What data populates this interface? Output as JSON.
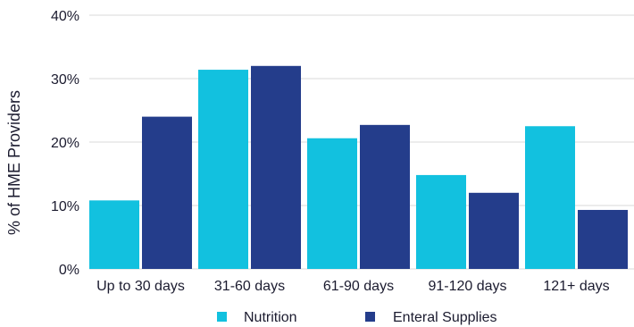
{
  "chart_data": {
    "type": "bar",
    "title": "",
    "xlabel": "",
    "ylabel": "% of HME Providers",
    "ylim": [
      0,
      40
    ],
    "yticks": [
      "0%",
      "10%",
      "20%",
      "30%",
      "40%"
    ],
    "categories": [
      "Up to 30 days",
      "31-60 days",
      "61-90 days",
      "91-120 days",
      "121+ days"
    ],
    "series": [
      {
        "name": "Nutrition",
        "color": "#12c1df",
        "values": [
          10.8,
          31.4,
          20.6,
          14.8,
          22.5
        ]
      },
      {
        "name": "Enteral Supplies",
        "color": "#243d8b",
        "values": [
          24.0,
          32.0,
          22.7,
          12.0,
          9.3
        ]
      }
    ],
    "grid": true,
    "legend": "bottom-center"
  }
}
